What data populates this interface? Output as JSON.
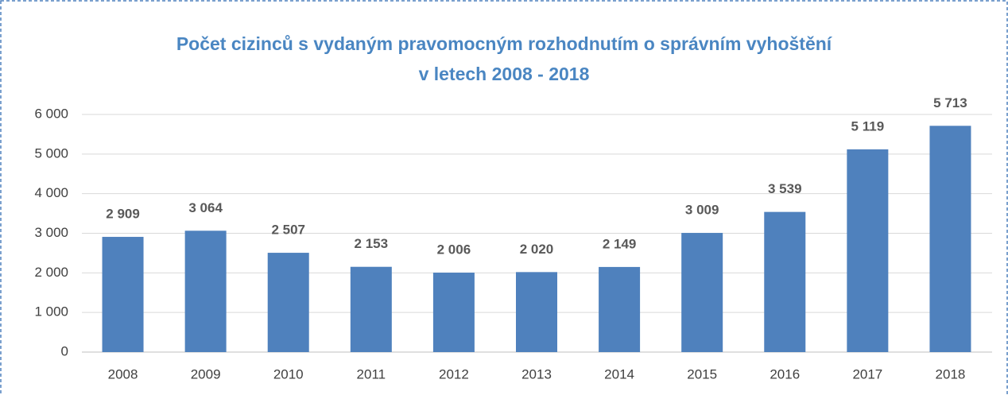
{
  "chart_data": {
    "type": "bar",
    "title": [
      "Počet cizinců s vydaným pravomocným rozhodnutím o správním vyhoštění",
      "v letech 2008 - 2018"
    ],
    "categories": [
      "2008",
      "2009",
      "2010",
      "2011",
      "2012",
      "2013",
      "2014",
      "2015",
      "2016",
      "2017",
      "2018"
    ],
    "values": [
      2909,
      3064,
      2507,
      2153,
      2006,
      2020,
      2149,
      3009,
      3539,
      5119,
      5713
    ],
    "value_labels": [
      "2 909",
      "3 064",
      "2 507",
      "2 153",
      "2 006",
      "2 020",
      "2 149",
      "3 009",
      "3 539",
      "5 119",
      "5 713"
    ],
    "color": "#4f81bd",
    "ylim": [
      0,
      6000
    ],
    "yticks": [
      0,
      {
        "value": 1000,
        "label": "1 000"
      },
      {
        "value": 2000,
        "label": "2 000"
      },
      {
        "value": 3000,
        "label": "3 000"
      },
      {
        "value": 4000,
        "label": "4 000"
      },
      {
        "value": 5000,
        "label": "5 000"
      },
      {
        "value": 6000,
        "label": "6 000"
      }
    ],
    "grid": true
  }
}
